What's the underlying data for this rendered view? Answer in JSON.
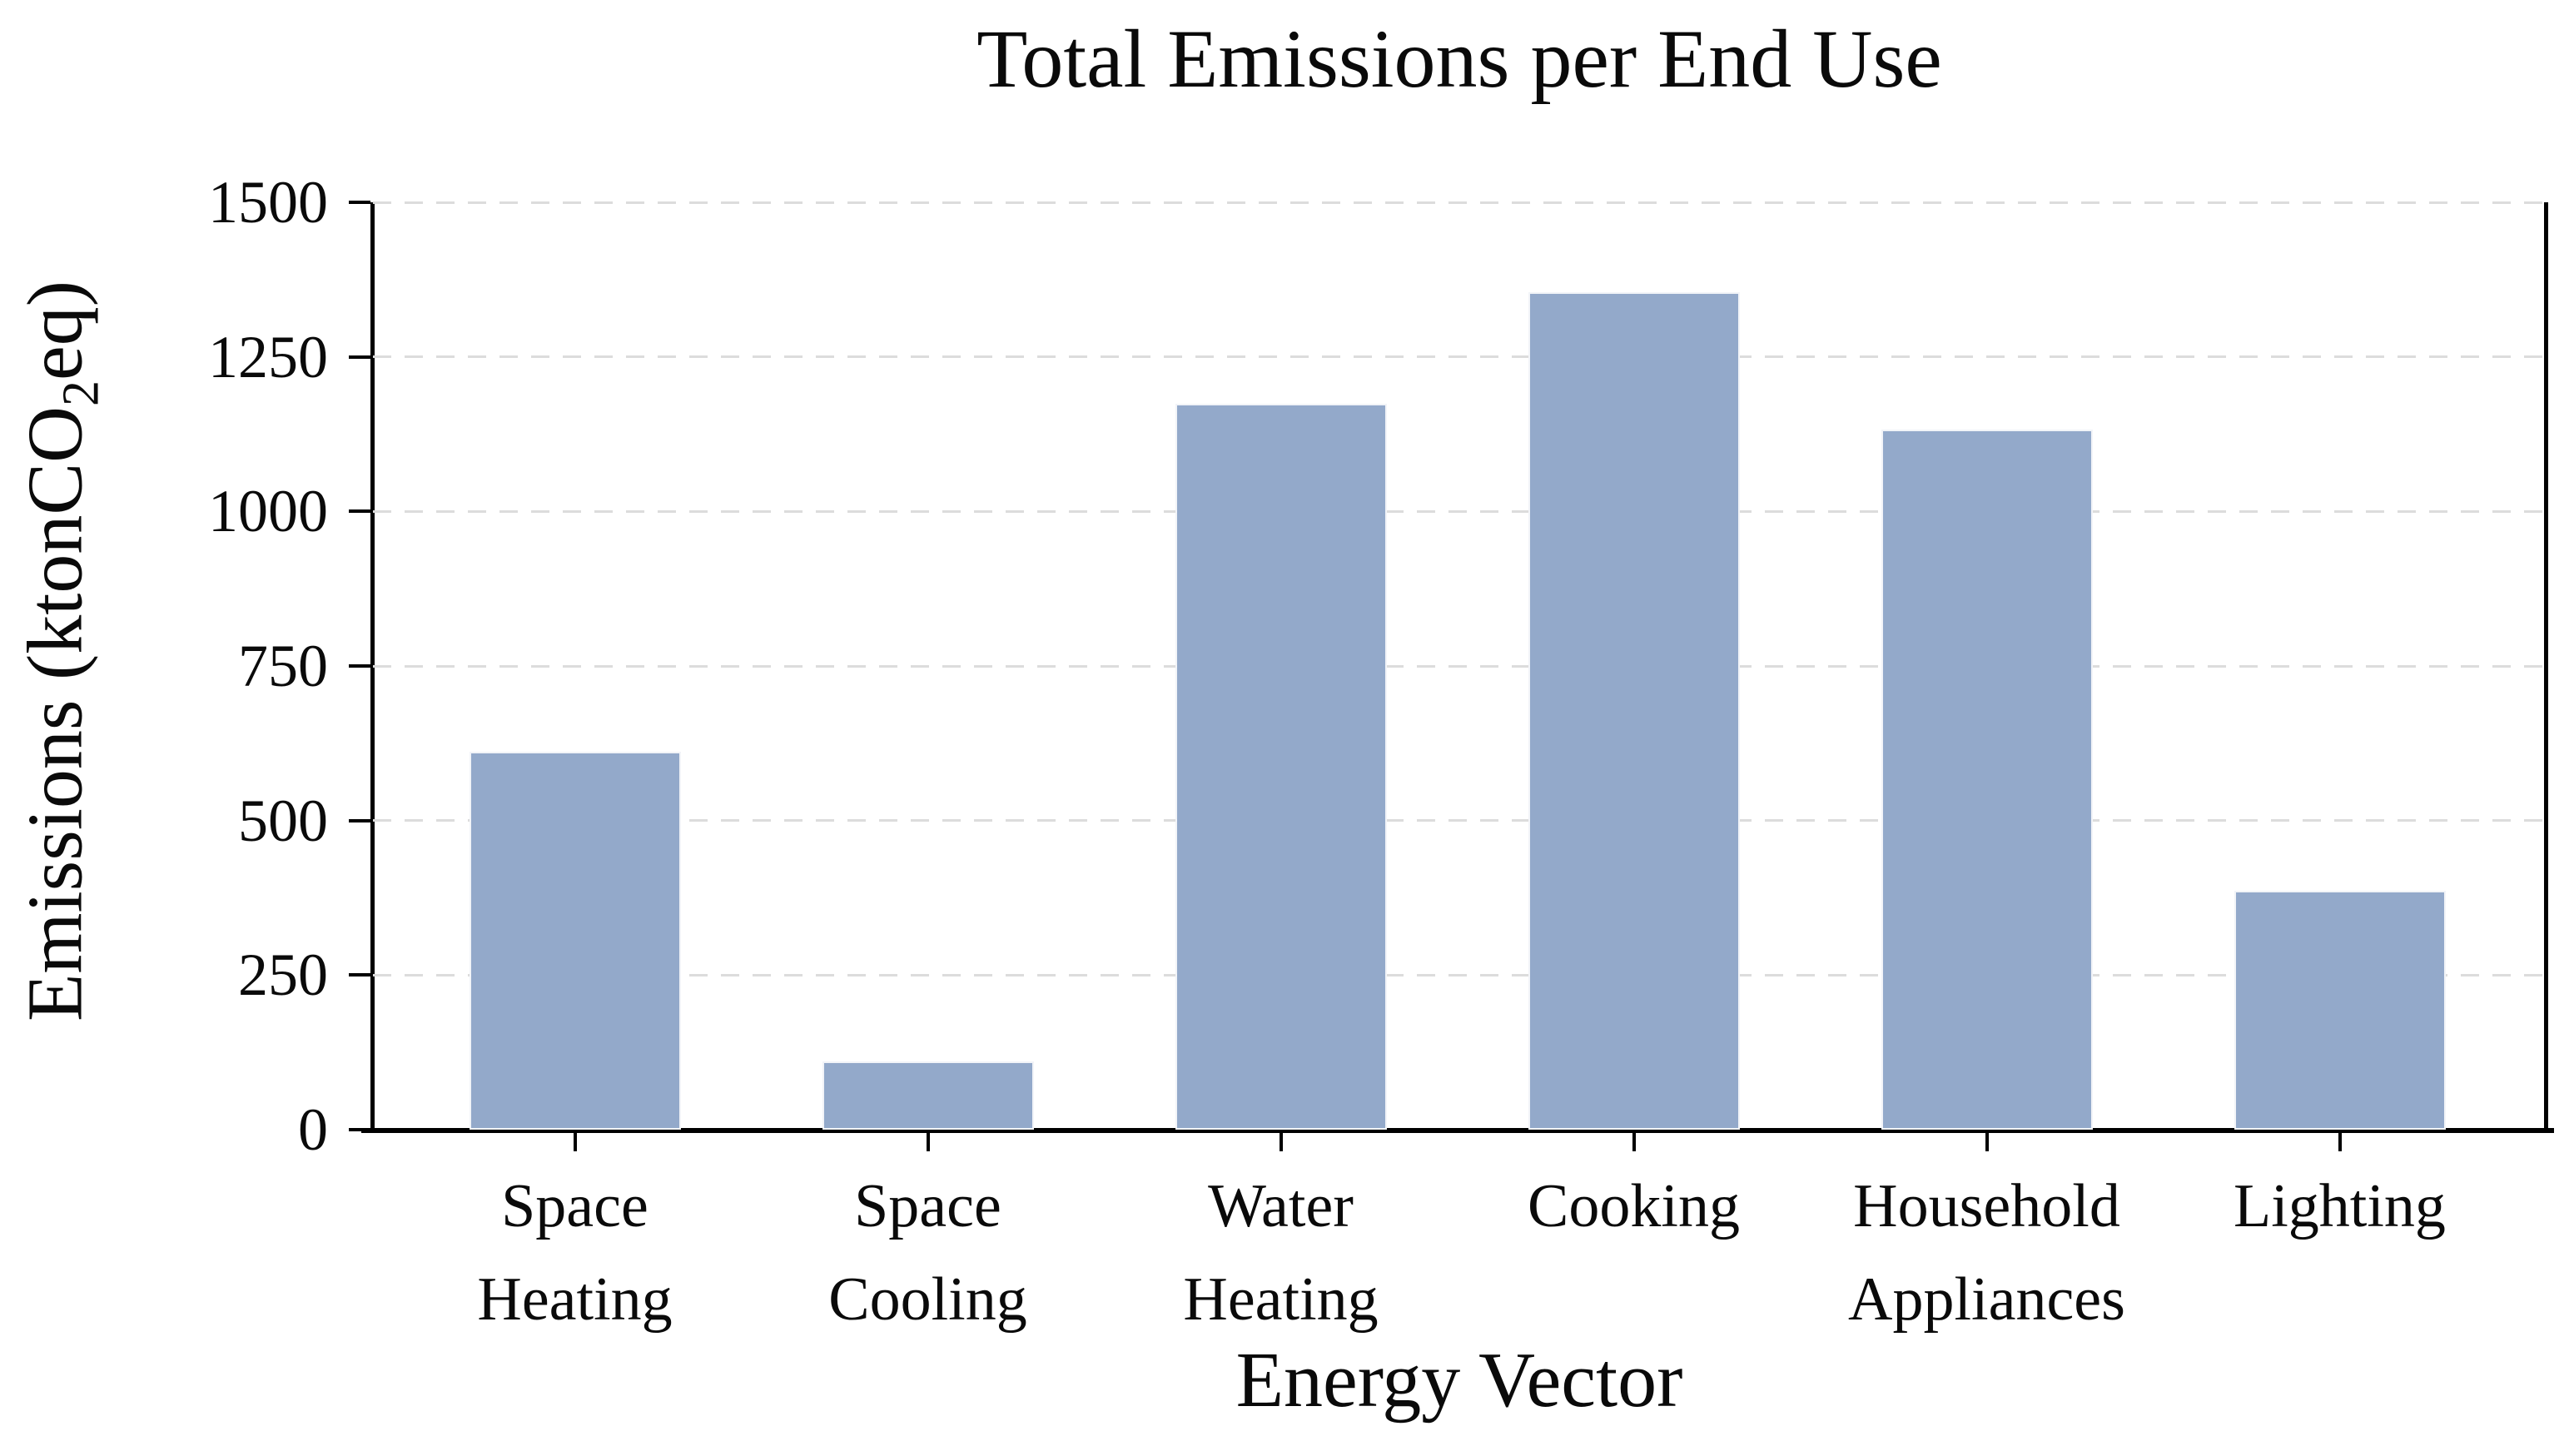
{
  "chart_data": {
    "type": "bar",
    "title": "Total Emissions per End Use",
    "xlabel": "Energy Vector",
    "ylabel": "Emissions (ktonCO2eq)",
    "ylabel_parts": {
      "pre": "Emissions (ktonCO",
      "sub": "2",
      "post": "eq)"
    },
    "categories": [
      "Space Heating",
      "Space Cooling",
      "Water Heating",
      "Cooking",
      "Household Appliances",
      "Lighting"
    ],
    "categories_display": [
      [
        "Space",
        "Heating"
      ],
      [
        "Space",
        "Cooling"
      ],
      [
        "Water",
        "Heating"
      ],
      [
        "Cooking"
      ],
      [
        "Household",
        "Appliances"
      ],
      [
        "Lighting"
      ]
    ],
    "values": [
      612,
      110,
      1174,
      1354,
      1133,
      386
    ],
    "ylim": [
      0,
      1500
    ],
    "yticks": [
      0,
      250,
      500,
      750,
      1000,
      1250,
      1500
    ],
    "ytick_labels": [
      "0",
      "250",
      "500",
      "750",
      "1000",
      "1250",
      "1500"
    ],
    "grid": "horizontal-dashed",
    "legend": "none",
    "colors": {
      "bar_fill": "#93a9ca",
      "bar_edge": "#f2f4f8",
      "grid": "#dcdcdc",
      "axis": "#000000",
      "text": "#0a0a0a",
      "background": "#ffffff"
    }
  }
}
